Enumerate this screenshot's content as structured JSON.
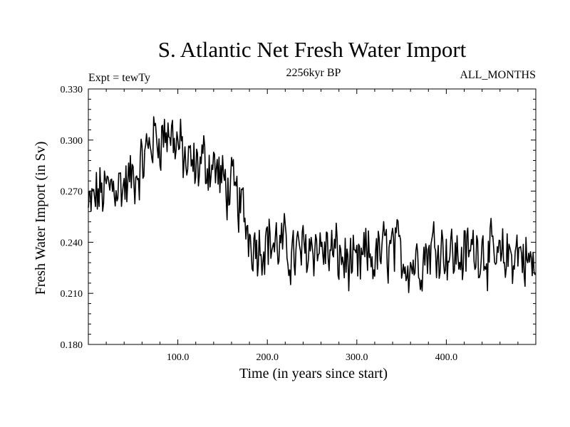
{
  "header": {
    "title": "S. Atlantic Net Fresh Water Import",
    "expt": "Expt = tewTy",
    "subtitle": "2256kyr BP",
    "months": "ALL_MONTHS"
  },
  "chart_data": {
    "type": "line",
    "title": "S. Atlantic Net Fresh Water Import",
    "xlabel": "Time (in years since start)",
    "ylabel": "Fresh Water Import (in Sv)",
    "xlim": [
      0,
      500
    ],
    "ylim": [
      0.18,
      0.33
    ],
    "xticks": [
      100,
      200,
      300,
      400
    ],
    "xtick_labels": [
      "100.0",
      "200.0",
      "300.0",
      "400.0"
    ],
    "yticks": [
      0.18,
      0.21,
      0.24,
      0.27,
      0.3,
      0.33
    ],
    "ytick_labels": [
      "0.180",
      "0.210",
      "0.240",
      "0.270",
      "0.300",
      "0.330"
    ],
    "grid": false,
    "series": [
      {
        "name": "Fresh Water Import",
        "x": [
          0,
          10,
          20,
          30,
          40,
          50,
          60,
          70,
          80,
          90,
          100,
          110,
          120,
          130,
          140,
          150,
          160,
          170,
          180,
          190,
          200,
          210,
          220,
          230,
          240,
          250,
          260,
          270,
          280,
          290,
          300,
          310,
          320,
          330,
          340,
          350,
          360,
          370,
          380,
          390,
          400,
          410,
          420,
          430,
          440,
          450,
          460,
          470,
          480,
          490,
          500
        ],
        "values": [
          0.258,
          0.268,
          0.27,
          0.275,
          0.272,
          0.278,
          0.285,
          0.3,
          0.302,
          0.305,
          0.298,
          0.285,
          0.283,
          0.288,
          0.285,
          0.275,
          0.27,
          0.262,
          0.245,
          0.238,
          0.242,
          0.238,
          0.236,
          0.232,
          0.234,
          0.24,
          0.236,
          0.234,
          0.232,
          0.228,
          0.222,
          0.232,
          0.23,
          0.235,
          0.236,
          0.232,
          0.228,
          0.23,
          0.235,
          0.24,
          0.235,
          0.232,
          0.232,
          0.236,
          0.238,
          0.23,
          0.228,
          0.232,
          0.235,
          0.23,
          0.222
        ]
      }
    ]
  }
}
